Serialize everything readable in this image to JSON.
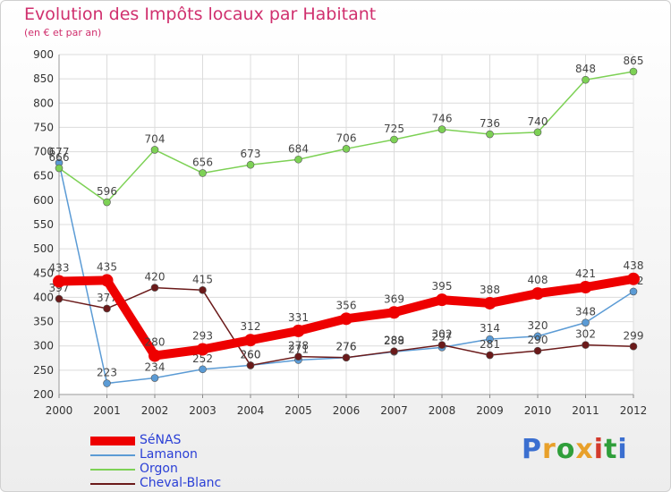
{
  "header": {
    "title": "Evolution des Impôts locaux par Habitant",
    "subtitle": "(en € et par an)"
  },
  "brand": {
    "logo_text": "Proxiti",
    "logo_colors": [
      "#3b6fd0",
      "#e8a02a",
      "#2f9e3a",
      "#e8a02a",
      "#d33a2c",
      "#2f9e3a",
      "#3b6fd0"
    ]
  },
  "chart_data": {
    "type": "line",
    "x": [
      "2000",
      "2001",
      "2002",
      "2003",
      "2004",
      "2005",
      "2006",
      "2007",
      "2008",
      "2009",
      "2010",
      "2011",
      "2012"
    ],
    "ylim": [
      200,
      900
    ],
    "yticks": [
      "200",
      "250",
      "300",
      "350",
      "400",
      "450",
      "500",
      "550",
      "600",
      "650",
      "700",
      "750",
      "800",
      "850",
      "900"
    ],
    "grid": true,
    "legend_position": "bottom-left",
    "series": [
      {
        "name": "SéNAS",
        "color": "#ee0000",
        "values": [
          433,
          435,
          280,
          293,
          312,
          331,
          356,
          369,
          395,
          388,
          408,
          421,
          438
        ]
      },
      {
        "name": "Lamanon",
        "color": "#5b9bd5",
        "values": [
          677,
          223,
          234,
          252,
          260,
          271,
          276,
          288,
          297,
          314,
          320,
          348,
          412
        ]
      },
      {
        "name": "Orgon",
        "color": "#7dd155",
        "values": [
          666,
          596,
          704,
          656,
          673,
          684,
          706,
          725,
          746,
          736,
          740,
          848,
          865
        ]
      },
      {
        "name": "Cheval-Blanc",
        "color": "#6b1a1a",
        "values": [
          397,
          377,
          420,
          415,
          260,
          278,
          276,
          289,
          302,
          281,
          290,
          302,
          299
        ]
      }
    ]
  }
}
